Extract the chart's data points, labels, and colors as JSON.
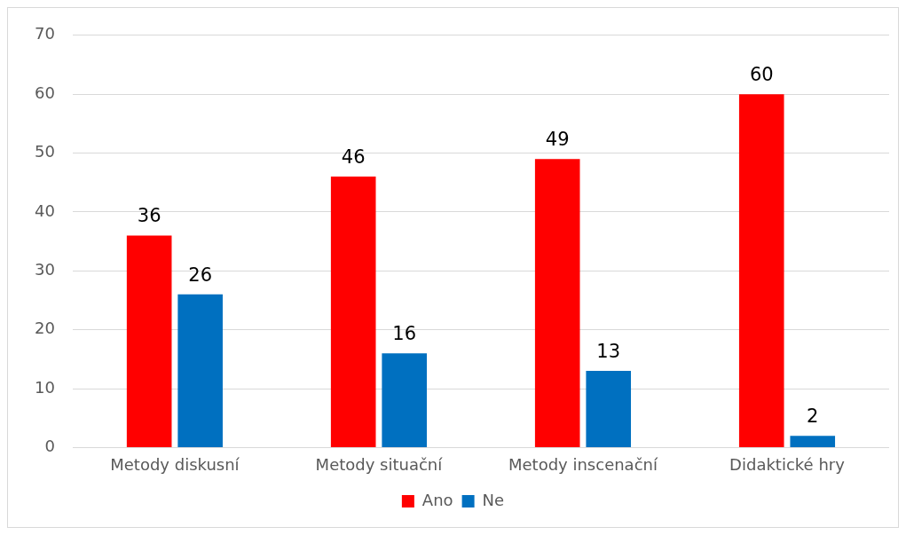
{
  "chart_data": {
    "type": "bar",
    "categories": [
      "Metody diskusní",
      "Metody situační",
      "Metody inscenační",
      "Didaktické hry"
    ],
    "series": [
      {
        "name": "Ano",
        "color": "#ff0000",
        "values": [
          36,
          46,
          49,
          60
        ]
      },
      {
        "name": "Ne",
        "color": "#0070c0",
        "values": [
          26,
          16,
          13,
          2
        ]
      }
    ],
    "ylim": [
      0,
      70
    ],
    "yticks": [
      0,
      10,
      20,
      30,
      40,
      50,
      60,
      70
    ],
    "grid": "y",
    "legend": "bottom",
    "data_labels": true
  }
}
